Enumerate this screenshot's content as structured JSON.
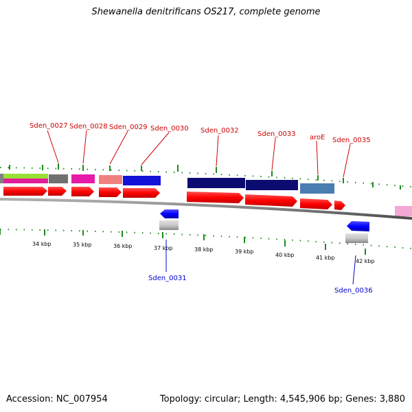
{
  "title": "Shewanella denitrificans OS217, complete genome",
  "footer": {
    "accession": "Accession: NC_007954",
    "topology": "Topology: circular; Length: 4,545,906 bp; Genes: 3,880"
  },
  "colors": {
    "cds_forward": "#ff0000",
    "cds_reverse": "#0000ff",
    "backbone": "#7f7f7f",
    "ticks": "#1a8a1a",
    "label_forward": "#cc0000",
    "label_reverse": "#0000cc"
  },
  "scale_labels": [
    "34 kbp",
    "35 kbp",
    "36 kbp",
    "37 kbp",
    "38 kbp",
    "39 kbp",
    "40 kbp",
    "41 kbp",
    "42 kbp"
  ],
  "forward_labels": [
    "Sden_0027",
    "Sden_0028",
    "Sden_0029",
    "Sden_0030",
    "Sden_0032",
    "Sden_0033",
    "aroE",
    "Sden_0035"
  ],
  "reverse_labels": [
    "Sden_0031",
    "Sden_0036"
  ]
}
